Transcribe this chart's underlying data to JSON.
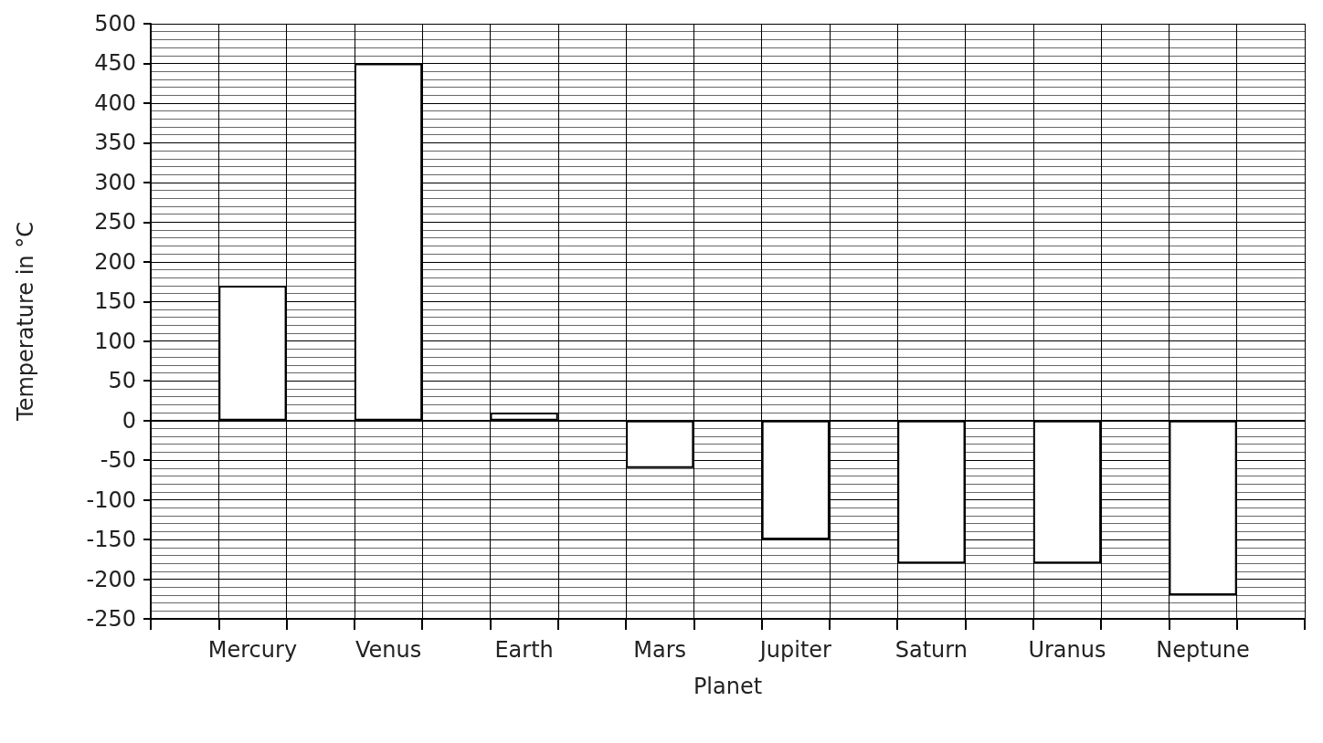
{
  "chart_data": {
    "type": "bar",
    "xlabel": "Planet",
    "ylabel": "Temperature in °C",
    "categories": [
      "Mercury",
      "Venus",
      "Earth",
      "Mars",
      "Jupiter",
      "Saturn",
      "Uranus",
      "Neptune"
    ],
    "values": [
      170,
      450,
      10,
      -60,
      -150,
      -180,
      -180,
      -220
    ],
    "color": "#ffffff",
    "ylim": [
      -250,
      500
    ],
    "yticks": [
      -250,
      -200,
      -150,
      -100,
      -50,
      0,
      50,
      100,
      150,
      200,
      250,
      300,
      350,
      400,
      450,
      500
    ],
    "grid": true
  }
}
